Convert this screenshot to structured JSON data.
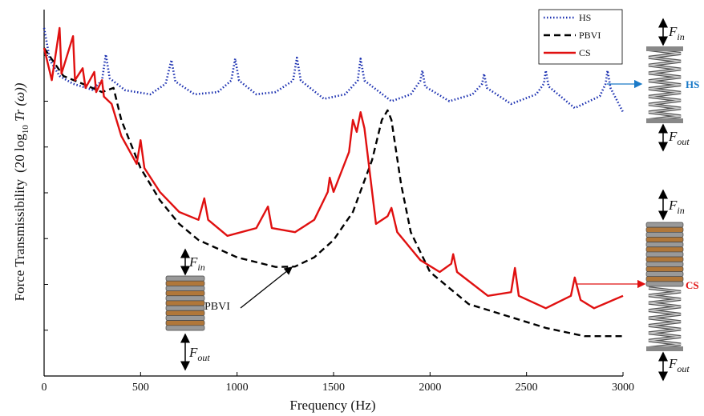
{
  "chart_data": {
    "type": "line",
    "xlabel": "Frequency (Hz)",
    "ylabel": {
      "main": "Force Transmissibility",
      "formula": "(20 log",
      "sub": "10",
      "tail": " Tr (ω))"
    },
    "xlim": [
      0,
      3000
    ],
    "xticks": [
      0,
      500,
      1000,
      1500,
      2000,
      2500,
      3000
    ],
    "ylim": [
      0,
      8
    ],
    "yticks": [
      1,
      2,
      3,
      4,
      5,
      6,
      7
    ],
    "grid": false,
    "legend": "upper right",
    "series": [
      {
        "name": "HS",
        "color": "#1a2fb0",
        "line_style": "dotted",
        "x": [
          0,
          30,
          80,
          150,
          250,
          300,
          320,
          340,
          420,
          550,
          630,
          660,
          680,
          780,
          900,
          970,
          990,
          1010,
          1100,
          1200,
          1290,
          1310,
          1330,
          1450,
          1560,
          1625,
          1640,
          1660,
          1800,
          1900,
          1950,
          1960,
          1975,
          2100,
          2220,
          2270,
          2280,
          2295,
          2420,
          2550,
          2590,
          2600,
          2615,
          2750,
          2880,
          2910,
          2920,
          2935,
          3000
        ],
        "values": [
          7.6,
          6.9,
          6.55,
          6.38,
          6.25,
          6.45,
          7.02,
          6.5,
          6.24,
          6.15,
          6.38,
          6.9,
          6.43,
          6.15,
          6.2,
          6.45,
          6.93,
          6.45,
          6.15,
          6.2,
          6.45,
          6.95,
          6.45,
          6.05,
          6.15,
          6.45,
          6.93,
          6.45,
          6.0,
          6.15,
          6.45,
          6.67,
          6.32,
          6.0,
          6.15,
          6.38,
          6.6,
          6.29,
          5.94,
          6.15,
          6.38,
          6.67,
          6.32,
          5.85,
          6.11,
          6.38,
          6.67,
          6.29,
          5.76
        ]
      },
      {
        "name": "PBVI",
        "color": "#000000",
        "line_style": "dashed",
        "x": [
          0,
          100,
          200,
          300,
          360,
          400,
          500,
          600,
          700,
          800,
          1000,
          1200,
          1300,
          1400,
          1500,
          1600,
          1700,
          1750,
          1780,
          1800,
          1850,
          1900,
          2000,
          2200,
          2400,
          2600,
          2800,
          3000
        ],
        "values": [
          7.16,
          6.55,
          6.38,
          6.2,
          6.29,
          5.59,
          4.54,
          3.84,
          3.32,
          2.97,
          2.59,
          2.38,
          2.39,
          2.59,
          2.97,
          3.58,
          4.72,
          5.59,
          5.8,
          5.59,
          4.19,
          3.14,
          2.27,
          1.57,
          1.31,
          1.05,
          0.87,
          0.87
        ]
      },
      {
        "name": "CS",
        "color": "#e01010",
        "line_style": "solid",
        "x": [
          0,
          40,
          80,
          90,
          150,
          160,
          200,
          215,
          260,
          270,
          300,
          310,
          350,
          400,
          480,
          500,
          520,
          600,
          700,
          800,
          830,
          850,
          950,
          1100,
          1160,
          1180,
          1300,
          1400,
          1470,
          1480,
          1500,
          1580,
          1600,
          1620,
          1640,
          1660,
          1680,
          1720,
          1780,
          1800,
          1830,
          1950,
          2050,
          2110,
          2120,
          2140,
          2300,
          2420,
          2440,
          2460,
          2600,
          2730,
          2750,
          2780,
          2850,
          3000
        ],
        "values": [
          7.16,
          6.46,
          7.6,
          6.6,
          7.42,
          6.46,
          6.72,
          6.29,
          6.64,
          6.2,
          6.46,
          6.1,
          5.94,
          5.24,
          4.63,
          5.15,
          4.54,
          4.02,
          3.58,
          3.41,
          3.88,
          3.41,
          3.06,
          3.23,
          3.7,
          3.23,
          3.14,
          3.41,
          4.02,
          4.33,
          4.02,
          4.89,
          5.59,
          5.33,
          5.76,
          5.41,
          4.72,
          3.32,
          3.49,
          3.67,
          3.14,
          2.53,
          2.27,
          2.45,
          2.66,
          2.27,
          1.75,
          1.83,
          2.36,
          1.75,
          1.48,
          1.75,
          2.15,
          1.66,
          1.48,
          1.75
        ]
      }
    ],
    "annotations": {
      "pbvi": "PBVI",
      "hs": "HS",
      "cs": "CS"
    },
    "force_labels": [
      {
        "symbol": "F",
        "subscript": "in"
      },
      {
        "symbol": "F",
        "subscript": "out"
      },
      {
        "symbol": "F",
        "subscript": "in"
      },
      {
        "symbol": "F",
        "subscript": "out"
      },
      {
        "symbol": "F",
        "subscript": "in"
      },
      {
        "symbol": "F",
        "subscript": "out"
      }
    ]
  }
}
